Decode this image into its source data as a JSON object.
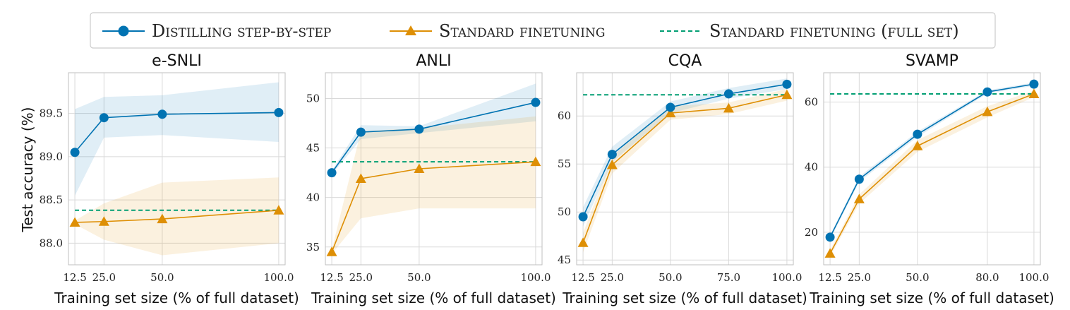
{
  "legend": {
    "position": "top-center",
    "entries": [
      {
        "label": "Distilling step-by-step",
        "color": "#0173B2",
        "style": "line-circle"
      },
      {
        "label": "Standard finetuning",
        "color": "#DE8F05",
        "style": "line-triangle"
      },
      {
        "label": "Standard finetuning (full set)",
        "color": "#029E73",
        "style": "dashed"
      }
    ]
  },
  "y_axis_label": "Test accuracy (%)",
  "colors": {
    "dss": "#0173B2",
    "sf": "#DE8F05",
    "full": "#029E73",
    "grid": "#d9d9d9"
  },
  "chart_data": [
    {
      "type": "line",
      "title": "e-SNLI",
      "xlabel": "Training set size (% of full dataset)",
      "x": [
        12.5,
        25.0,
        50.0,
        100.0
      ],
      "xticks": [
        12.5,
        25.0,
        50.0,
        100.0
      ],
      "xtick_labels": [
        "12.5",
        "25.0",
        "50.0",
        "100.0"
      ],
      "xlim": [
        9.75,
        102.75
      ],
      "ylim": [
        87.75,
        89.97
      ],
      "yticks": [
        88.0,
        88.5,
        89.0,
        89.5
      ],
      "ytick_labels": [
        "88.0",
        "88.5",
        "89.0",
        "89.5"
      ],
      "grid": true,
      "series": [
        {
          "name": "Distilling step-by-step",
          "values": [
            89.05,
            89.45,
            89.49,
            89.51
          ],
          "band_low": [
            88.55,
            89.22,
            89.25,
            89.17
          ],
          "band_high": [
            89.55,
            89.69,
            89.71,
            89.86
          ]
        },
        {
          "name": "Standard finetuning",
          "values": [
            88.24,
            88.25,
            88.28,
            88.38
          ],
          "band_low": [
            88.22,
            88.04,
            87.86,
            88.0
          ],
          "band_high": [
            88.26,
            88.46,
            88.7,
            88.76
          ]
        }
      ],
      "full_set": 88.38
    },
    {
      "type": "line",
      "title": "ANLI",
      "xlabel": "Training set size (% of full dataset)",
      "x": [
        12.5,
        25.0,
        50.0,
        100.0
      ],
      "xticks": [
        12.5,
        25.0,
        50.0,
        100.0
      ],
      "xtick_labels": [
        "12.5",
        "25.0",
        "50.0",
        "100.0"
      ],
      "xlim": [
        9.75,
        102.75
      ],
      "ylim": [
        33.2,
        52.6
      ],
      "yticks": [
        35,
        40,
        45,
        50
      ],
      "ytick_labels": [
        "35",
        "40",
        "45",
        "50"
      ],
      "grid": true,
      "series": [
        {
          "name": "Distilling step-by-step",
          "values": [
            42.5,
            46.6,
            46.9,
            49.6
          ],
          "band_low": [
            42.3,
            45.9,
            46.5,
            47.7
          ],
          "band_high": [
            42.7,
            47.3,
            47.2,
            51.5
          ]
        },
        {
          "name": "Standard finetuning",
          "values": [
            34.5,
            41.9,
            42.9,
            43.6
          ],
          "band_low": [
            34.3,
            37.9,
            38.9,
            38.9
          ],
          "band_high": [
            34.7,
            46.7,
            47.0,
            48.2
          ]
        }
      ],
      "full_set": 43.6
    },
    {
      "type": "line",
      "title": "CQA",
      "xlabel": "Training set size (% of full dataset)",
      "x": [
        12.5,
        25.0,
        50.0,
        75.0,
        100.0
      ],
      "xticks": [
        12.5,
        25.0,
        50.0,
        75.0,
        100.0
      ],
      "xtick_labels": [
        "12.5",
        "25.0",
        "50.0",
        "75.0",
        "100.0"
      ],
      "xlim": [
        9.75,
        102.75
      ],
      "ylim": [
        44.5,
        64.5
      ],
      "yticks": [
        45,
        50,
        55,
        60
      ],
      "ytick_labels": [
        "45",
        "50",
        "55",
        "60"
      ],
      "grid": true,
      "series": [
        {
          "name": "Distilling step-by-step",
          "values": [
            49.5,
            56.0,
            60.9,
            62.3,
            63.3
          ],
          "band_low": [
            48.5,
            55.2,
            60.3,
            61.8,
            62.8
          ],
          "band_high": [
            50.5,
            56.8,
            61.5,
            62.9,
            63.9
          ]
        },
        {
          "name": "Standard finetuning",
          "values": [
            46.8,
            54.9,
            60.3,
            60.8,
            62.2
          ],
          "band_low": [
            45.8,
            54.0,
            59.6,
            60.2,
            61.6
          ],
          "band_high": [
            47.8,
            55.8,
            61.0,
            61.4,
            62.8
          ]
        }
      ],
      "full_set": 62.2
    },
    {
      "type": "line",
      "title": "SVAMP",
      "xlabel": "Training set size (% of full dataset)",
      "x": [
        12.5,
        25.0,
        50.0,
        80.0,
        100.0
      ],
      "xticks": [
        12.5,
        25.0,
        50.0,
        80.0,
        100.0
      ],
      "xtick_labels": [
        "12.5",
        "25.0",
        "50.0",
        "80.0",
        "100.0"
      ],
      "xlim": [
        9.75,
        102.75
      ],
      "ylim": [
        10.0,
        69.0
      ],
      "yticks": [
        20,
        40,
        60
      ],
      "ytick_labels": [
        "20",
        "40",
        "60"
      ],
      "grid": true,
      "series": [
        {
          "name": "Distilling step-by-step",
          "values": [
            18.5,
            36.3,
            50.1,
            63.1,
            65.5
          ],
          "band_low": [
            17.8,
            35.5,
            49.3,
            62.6,
            65.0
          ],
          "band_high": [
            19.2,
            37.1,
            50.9,
            63.6,
            66.0
          ]
        },
        {
          "name": "Standard finetuning",
          "values": [
            13.5,
            30.2,
            46.5,
            57.0,
            62.5
          ],
          "band_low": [
            12.5,
            28.8,
            44.7,
            55.3,
            61.5
          ],
          "band_high": [
            14.5,
            31.6,
            48.3,
            58.7,
            63.5
          ]
        }
      ],
      "full_set": 62.5
    }
  ]
}
